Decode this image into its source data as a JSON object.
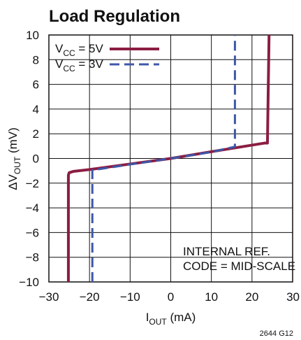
{
  "chart_data": {
    "type": "line",
    "title": "Load Regulation",
    "xlabel": {
      "prefix": "I",
      "subscript": "OUT",
      "suffix": " (mA)"
    },
    "ylabel": {
      "prefix": "ΔV",
      "subscript": "OUT",
      "suffix": " (mV)"
    },
    "xlim": [
      -30,
      30
    ],
    "ylim": [
      -10,
      10
    ],
    "x_ticks": [
      "−30",
      "−20",
      "−10",
      "0",
      "10",
      "20",
      "30"
    ],
    "y_ticks": [
      "10",
      "8",
      "6",
      "4",
      "2",
      "0",
      "−2",
      "−4",
      "−6",
      "−8",
      "−10"
    ],
    "grid": true,
    "legend_placement": "top-left",
    "series": [
      {
        "label": {
          "prefix": "V",
          "subscript": "CC",
          "suffix": " = 5V"
        },
        "color": "#8b1d43",
        "line_style": "solid",
        "points": [
          [
            -25.2,
            -10
          ],
          [
            -25.2,
            -1.35
          ],
          [
            -25.0,
            -1.15
          ],
          [
            -24.0,
            -1.05
          ],
          [
            -20.0,
            -0.9
          ],
          [
            -10.0,
            -0.45
          ],
          [
            0.0,
            0.0
          ],
          [
            10.0,
            0.55
          ],
          [
            20.0,
            1.08
          ],
          [
            23.2,
            1.25
          ],
          [
            23.8,
            1.25
          ],
          [
            24.2,
            10
          ]
        ]
      },
      {
        "label": {
          "prefix": "V",
          "subscript": "CC",
          "suffix": " = 3V"
        },
        "color": "#3d57a8",
        "line_style": "dashed",
        "points": [
          [
            -19.3,
            -10
          ],
          [
            -19.3,
            -0.95
          ],
          [
            -10.0,
            -0.48
          ],
          [
            0.0,
            0.0
          ],
          [
            10.0,
            0.52
          ],
          [
            15.8,
            0.95
          ],
          [
            15.8,
            10
          ]
        ]
      }
    ],
    "annotations": [
      {
        "lines": [
          "INTERNAL REF.",
          "CODE = MID-SCALE"
        ],
        "placement": "bottom-right"
      }
    ],
    "figure_code": "2644 G12"
  }
}
